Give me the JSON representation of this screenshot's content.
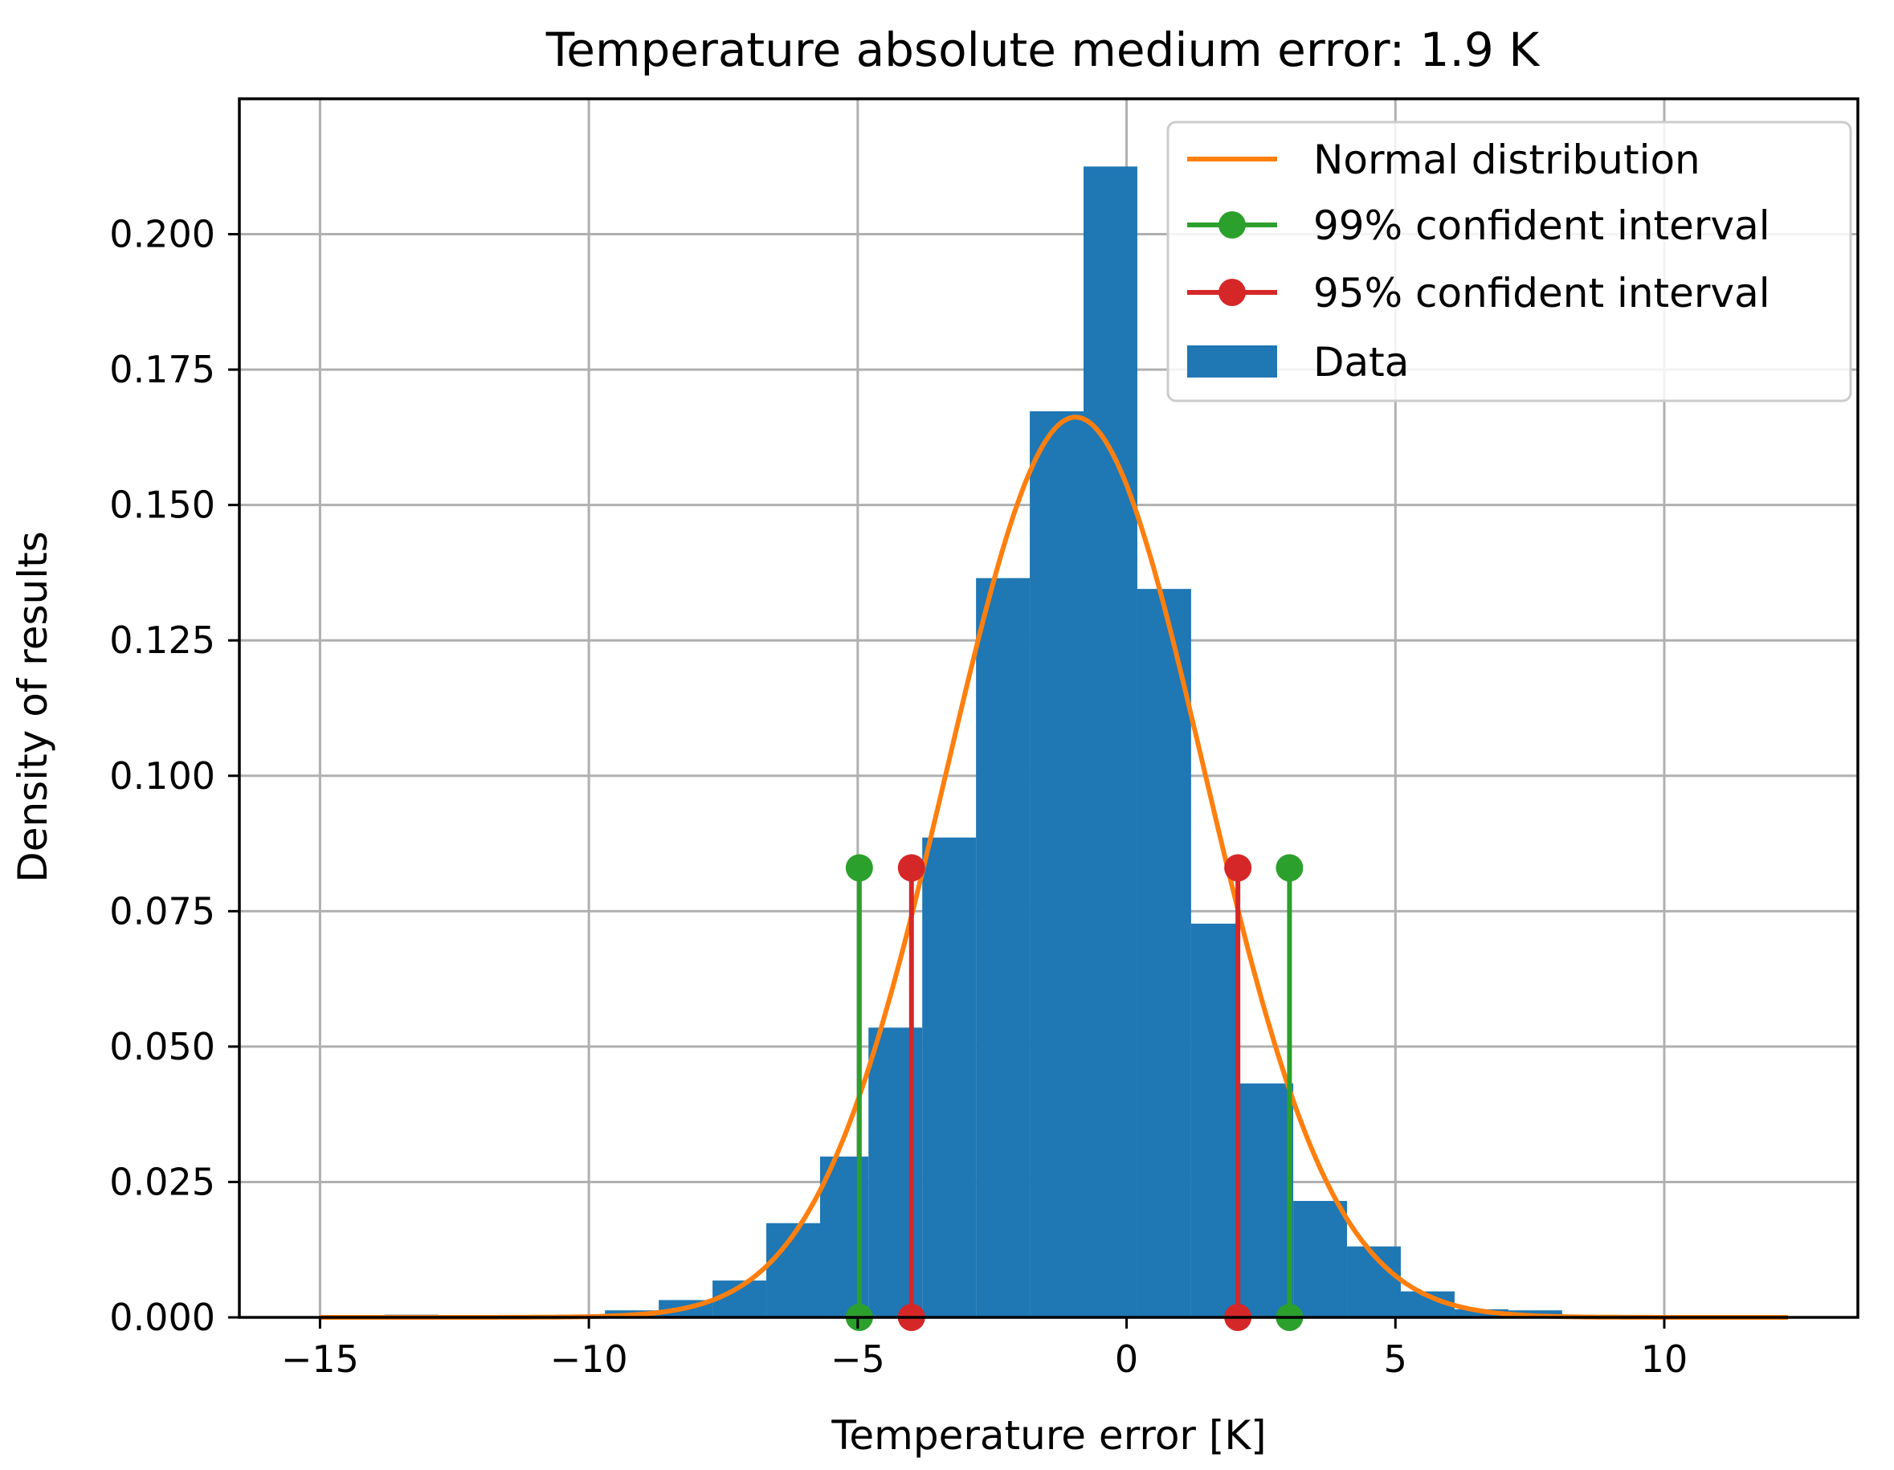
{
  "chart_data": {
    "type": "bar",
    "title": "Temperature absolute medium error: 1.9 K",
    "xlabel": "Temperature error [K]",
    "ylabel": "Density of results",
    "xlim": [
      -16.5,
      13.6
    ],
    "ylim": [
      0,
      0.225
    ],
    "xticks": [
      -15,
      -10,
      -5,
      0,
      5,
      10
    ],
    "xtick_labels": [
      "−15",
      "−10",
      "−5",
      "0",
      "5",
      "10"
    ],
    "yticks": [
      0,
      0.025,
      0.05,
      0.075,
      0.1,
      0.125,
      0.15,
      0.175,
      0.2
    ],
    "ytick_labels": [
      "0.000",
      "0.025",
      "0.050",
      "0.075",
      "0.100",
      "0.125",
      "0.150",
      "0.175",
      "0.200"
    ],
    "grid": true,
    "legend_position": "top-right",
    "histogram": {
      "name": "Data",
      "color": "#1f77b4",
      "bins": [
        {
          "x0": -15.0,
          "x1": -13.8,
          "value": 0.0003
        },
        {
          "x0": -13.8,
          "x1": -12.8,
          "value": 0.0005
        },
        {
          "x0": -12.8,
          "x1": -10.6,
          "value": 0.0003
        },
        {
          "x0": -10.6,
          "x1": -9.7,
          "value": 0.0005
        },
        {
          "x0": -9.7,
          "x1": -8.7,
          "value": 0.0013
        },
        {
          "x0": -8.7,
          "x1": -7.7,
          "value": 0.0032
        },
        {
          "x0": -7.7,
          "x1": -6.7,
          "value": 0.0068
        },
        {
          "x0": -6.7,
          "x1": -5.7,
          "value": 0.0174
        },
        {
          "x0": -5.7,
          "x1": -4.8,
          "value": 0.0297
        },
        {
          "x0": -4.8,
          "x1": -3.8,
          "value": 0.0535
        },
        {
          "x0": -3.8,
          "x1": -2.8,
          "value": 0.0886
        },
        {
          "x0": -2.8,
          "x1": -1.8,
          "value": 0.1365
        },
        {
          "x0": -1.8,
          "x1": -0.8,
          "value": 0.1673
        },
        {
          "x0": -0.8,
          "x1": 0.2,
          "value": 0.2125
        },
        {
          "x0": 0.2,
          "x1": 1.2,
          "value": 0.1345
        },
        {
          "x0": 1.2,
          "x1": 2.1,
          "value": 0.0727
        },
        {
          "x0": 2.1,
          "x1": 3.1,
          "value": 0.0432
        },
        {
          "x0": 3.1,
          "x1": 4.1,
          "value": 0.0215
        },
        {
          "x0": 4.1,
          "x1": 5.1,
          "value": 0.0131
        },
        {
          "x0": 5.1,
          "x1": 6.1,
          "value": 0.0048
        },
        {
          "x0": 6.1,
          "x1": 7.1,
          "value": 0.0015
        },
        {
          "x0": 7.1,
          "x1": 8.1,
          "value": 0.0013
        },
        {
          "x0": 8.1,
          "x1": 12.3,
          "value": 0.0004
        }
      ]
    },
    "normal_distribution": {
      "name": "Normal distribution",
      "color": "#ff7f0e",
      "mean": -0.95,
      "std": 2.4,
      "x_range": [
        -15,
        12.3
      ]
    },
    "intervals": [
      {
        "name": "99% confident interval",
        "color": "#2ca02c",
        "x": [
          -4.97,
          3.03
        ],
        "height": 0.083
      },
      {
        "name": "95% confident interval",
        "color": "#d62728",
        "x": [
          -4.0,
          2.07
        ],
        "height": 0.083
      }
    ],
    "legend": [
      "Normal distribution",
      "99% confident interval",
      "95% confident interval",
      "Data"
    ]
  }
}
